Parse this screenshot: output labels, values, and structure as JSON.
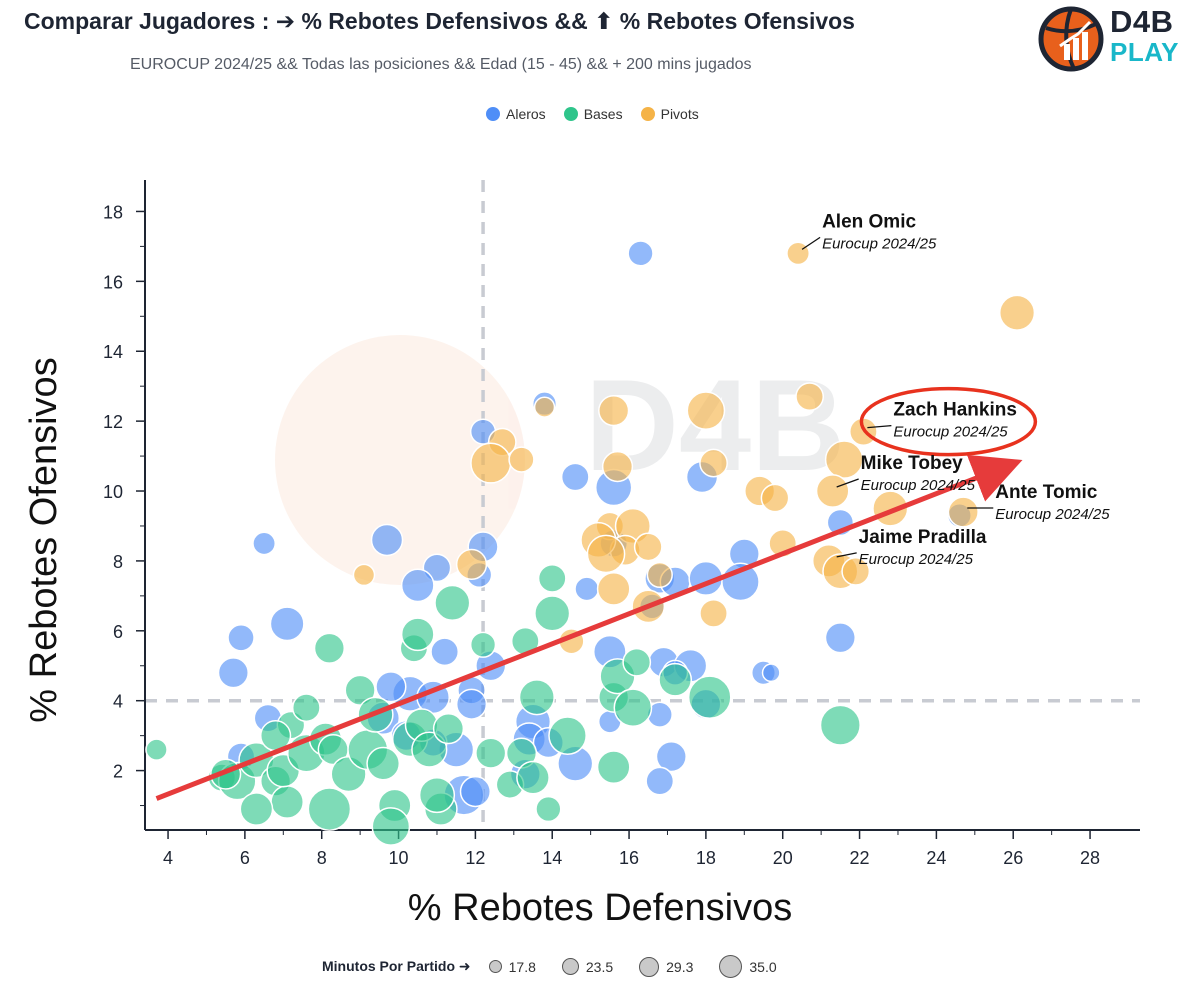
{
  "header": {
    "title": "Comparar Jugadores : ➔ % Rebotes Defensivos && ⬆ % Rebotes Ofensivos",
    "subtitle": "EUROCUP 2024/25 && Todas las posiciones && Edad (15 - 45) && + 200 mins jugados"
  },
  "logo": {
    "line1": "D4B",
    "line2": "PLAY",
    "icon": "basketball-chart-icon"
  },
  "colors": {
    "Aleros": "#4f8ef7",
    "Bases": "#2fc58b",
    "Pivots": "#f5b347",
    "trend": "#e63b3b",
    "highlight": "#e8321e",
    "refline": "#c8cbd2"
  },
  "legend": [
    {
      "name": "Aleros",
      "color": "#4f8ef7"
    },
    {
      "name": "Bases",
      "color": "#2fc58b"
    },
    {
      "name": "Pivots",
      "color": "#f5b347"
    }
  ],
  "size_legend": {
    "title": "Minutos Por Partido ➜",
    "items": [
      "17.8",
      "23.5",
      "29.3",
      "35.0"
    ]
  },
  "chart_data": {
    "type": "scatter",
    "xlabel": "% Rebotes Defensivos",
    "ylabel": "% Rebotes Ofensivos",
    "xlim": [
      3.4,
      29.3
    ],
    "ylim": [
      0.3,
      18.9
    ],
    "xticks": [
      4,
      6,
      8,
      10,
      12,
      14,
      16,
      18,
      20,
      22,
      24,
      26,
      28
    ],
    "yticks": [
      2,
      4,
      6,
      8,
      10,
      12,
      14,
      16,
      18
    ],
    "reference_lines": {
      "x": 12.2,
      "y": 4.0
    },
    "trend_line": {
      "from": [
        3.7,
        1.2
      ],
      "to": [
        26.0,
        10.8
      ]
    },
    "labeled_players": [
      {
        "name": "Alen Omic",
        "season": "Eurocup 2024/25",
        "x": 20.4,
        "y": 16.8,
        "highlight": false
      },
      {
        "name": "Zach Hankins",
        "season": "Eurocup 2024/25",
        "x": 22.1,
        "y": 11.7,
        "highlight": true
      },
      {
        "name": "Mike Tobey",
        "season": "Eurocup 2024/25",
        "x": 21.3,
        "y": 10.0,
        "highlight": false
      },
      {
        "name": "Ante Tomic",
        "season": "Eurocup 2024/25",
        "x": 24.7,
        "y": 9.4,
        "highlight": false
      },
      {
        "name": "Jaime Pradilla",
        "season": "Eurocup 2024/25",
        "x": 21.3,
        "y": 8.0,
        "highlight": false
      }
    ],
    "series": [
      {
        "name": "Aleros",
        "points": [
          [
            16.3,
            16.8,
            20
          ],
          [
            13.8,
            12.5,
            19
          ],
          [
            12.2,
            11.7,
            20
          ],
          [
            12.2,
            8.4,
            24
          ],
          [
            9.7,
            8.6,
            25
          ],
          [
            11.0,
            7.8,
            22
          ],
          [
            10.5,
            7.3,
            26
          ],
          [
            12.1,
            7.6,
            20
          ],
          [
            6.5,
            8.5,
            18
          ],
          [
            5.9,
            5.8,
            21
          ],
          [
            5.7,
            4.8,
            24
          ],
          [
            7.1,
            6.2,
            27
          ],
          [
            12.4,
            5.0,
            24
          ],
          [
            11.2,
            5.4,
            22
          ],
          [
            10.3,
            4.2,
            28
          ],
          [
            9.8,
            4.4,
            24
          ],
          [
            10.9,
            4.1,
            26
          ],
          [
            11.9,
            4.3,
            22
          ],
          [
            11.9,
            3.9,
            24
          ],
          [
            9.6,
            3.5,
            26
          ],
          [
            10.2,
            3.0,
            24
          ],
          [
            11.5,
            2.6,
            28
          ],
          [
            10.9,
            2.8,
            22
          ],
          [
            13.5,
            3.4,
            28
          ],
          [
            13.4,
            2.9,
            26
          ],
          [
            13.9,
            2.8,
            24
          ],
          [
            14.6,
            2.2,
            28
          ],
          [
            13.3,
            1.9,
            24
          ],
          [
            11.7,
            1.3,
            32
          ],
          [
            12.0,
            1.4,
            24
          ],
          [
            15.6,
            10.1,
            29
          ],
          [
            14.6,
            10.4,
            22
          ],
          [
            15.6,
            8.5,
            22
          ],
          [
            14.9,
            7.2,
            19
          ],
          [
            16.6,
            6.7,
            20
          ],
          [
            16.8,
            7.5,
            24
          ],
          [
            17.2,
            7.4,
            24
          ],
          [
            18.0,
            7.5,
            27
          ],
          [
            19.0,
            8.2,
            24
          ],
          [
            18.9,
            7.4,
            30
          ],
          [
            17.9,
            10.4,
            25
          ],
          [
            21.5,
            9.1,
            21
          ],
          [
            21.5,
            5.8,
            24
          ],
          [
            15.5,
            5.4,
            26
          ],
          [
            16.9,
            5.1,
            24
          ],
          [
            17.6,
            5.0,
            26
          ],
          [
            17.2,
            4.8,
            20
          ],
          [
            18.0,
            3.9,
            24
          ],
          [
            19.5,
            4.8,
            19
          ],
          [
            19.7,
            4.8,
            14
          ],
          [
            16.8,
            3.6,
            20
          ],
          [
            17.1,
            2.4,
            24
          ],
          [
            16.8,
            1.7,
            22
          ],
          [
            15.5,
            3.4,
            18
          ],
          [
            24.6,
            9.3,
            19
          ],
          [
            6.6,
            3.5,
            22
          ],
          [
            5.9,
            2.4,
            22
          ]
        ]
      },
      {
        "name": "Bases",
        "points": [
          [
            3.7,
            2.6,
            17
          ],
          [
            5.4,
            1.8,
            22
          ],
          [
            5.8,
            1.7,
            30
          ],
          [
            6.3,
            2.3,
            28
          ],
          [
            6.8,
            1.7,
            24
          ],
          [
            7.1,
            1.1,
            26
          ],
          [
            7.0,
            2.0,
            26
          ],
          [
            7.2,
            3.3,
            22
          ],
          [
            7.6,
            2.5,
            30
          ],
          [
            8.1,
            2.9,
            26
          ],
          [
            8.2,
            0.9,
            34
          ],
          [
            8.3,
            2.6,
            24
          ],
          [
            8.7,
            1.9,
            28
          ],
          [
            9.0,
            4.3,
            24
          ],
          [
            9.2,
            2.6,
            32
          ],
          [
            9.4,
            3.6,
            28
          ],
          [
            9.6,
            2.2,
            26
          ],
          [
            9.9,
            1.0,
            26
          ],
          [
            9.8,
            0.4,
            30
          ],
          [
            10.3,
            2.9,
            28
          ],
          [
            10.6,
            3.3,
            26
          ],
          [
            10.8,
            2.6,
            28
          ],
          [
            11.1,
            0.9,
            26
          ],
          [
            11.0,
            1.3,
            28
          ],
          [
            11.3,
            3.2,
            24
          ],
          [
            10.4,
            5.5,
            22
          ],
          [
            10.5,
            5.9,
            26
          ],
          [
            11.4,
            6.8,
            28
          ],
          [
            12.2,
            5.6,
            20
          ],
          [
            13.3,
            5.7,
            22
          ],
          [
            14.0,
            7.5,
            22
          ],
          [
            14.0,
            6.5,
            28
          ],
          [
            12.4,
            2.5,
            24
          ],
          [
            12.9,
            1.6,
            22
          ],
          [
            13.2,
            2.5,
            24
          ],
          [
            13.6,
            4.1,
            28
          ],
          [
            13.5,
            1.8,
            26
          ],
          [
            13.9,
            0.9,
            20
          ],
          [
            14.4,
            3.0,
            30
          ],
          [
            15.6,
            2.1,
            26
          ],
          [
            15.6,
            4.1,
            24
          ],
          [
            15.7,
            4.7,
            28
          ],
          [
            16.1,
            3.8,
            30
          ],
          [
            16.2,
            5.1,
            22
          ],
          [
            17.2,
            4.6,
            26
          ],
          [
            18.1,
            4.1,
            34
          ],
          [
            21.5,
            3.3,
            32
          ],
          [
            8.2,
            5.5,
            24
          ],
          [
            7.6,
            3.8,
            22
          ],
          [
            6.8,
            3.0,
            24
          ],
          [
            6.3,
            0.9,
            26
          ],
          [
            5.5,
            1.9,
            24
          ]
        ]
      },
      {
        "name": "Pivots",
        "points": [
          [
            20.4,
            16.8,
            18
          ],
          [
            26.1,
            15.1,
            28
          ],
          [
            20.7,
            12.7,
            22
          ],
          [
            15.6,
            12.3,
            24
          ],
          [
            18.0,
            12.3,
            30
          ],
          [
            13.8,
            12.4,
            16
          ],
          [
            22.1,
            11.7,
            22
          ],
          [
            12.7,
            11.4,
            22
          ],
          [
            12.4,
            10.8,
            32
          ],
          [
            13.2,
            10.9,
            20
          ],
          [
            15.7,
            10.7,
            24
          ],
          [
            18.2,
            10.8,
            22
          ],
          [
            21.6,
            10.9,
            30
          ],
          [
            21.3,
            10.0,
            26
          ],
          [
            19.4,
            10.0,
            24
          ],
          [
            19.8,
            9.8,
            22
          ],
          [
            22.8,
            9.5,
            28
          ],
          [
            24.7,
            9.4,
            24
          ],
          [
            15.5,
            9.0,
            22
          ],
          [
            16.1,
            9.0,
            28
          ],
          [
            15.9,
            8.3,
            24
          ],
          [
            15.2,
            8.6,
            28
          ],
          [
            16.5,
            8.4,
            22
          ],
          [
            15.4,
            8.2,
            30
          ],
          [
            20.0,
            8.5,
            22
          ],
          [
            21.2,
            8.0,
            26
          ],
          [
            21.5,
            7.7,
            28
          ],
          [
            21.9,
            7.7,
            22
          ],
          [
            16.8,
            7.6,
            20
          ],
          [
            16.5,
            6.7,
            26
          ],
          [
            18.2,
            6.5,
            22
          ],
          [
            15.6,
            7.2,
            26
          ],
          [
            14.5,
            5.7,
            20
          ],
          [
            11.9,
            7.9,
            24
          ],
          [
            9.1,
            7.6,
            17
          ]
        ]
      }
    ]
  }
}
